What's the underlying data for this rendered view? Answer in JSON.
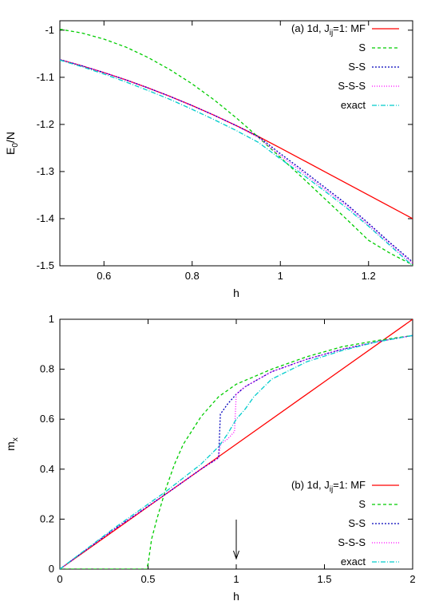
{
  "chart_data": [
    {
      "type": "line",
      "panel_label": "(a) 1d, J",
      "panel_label_sub": "ij",
      "panel_label_tail": "=1: MF",
      "xlabel": "h",
      "ylabel_main": "E",
      "ylabel_sub": "0",
      "ylabel_tail": "/N",
      "xlim": [
        0.5,
        1.3
      ],
      "ylim": [
        -1.5,
        -0.98
      ],
      "xticks": [
        0.6,
        0.8,
        1,
        1.2
      ],
      "xtick_labels": [
        "0.6",
        "0.8",
        "1",
        "1.2"
      ],
      "yticks": [
        -1.5,
        -1.4,
        -1.3,
        -1.2,
        -1.1,
        -1
      ],
      "ytick_labels": [
        "-1.5",
        "-1.4",
        "-1.3",
        "-1.2",
        "-1.1",
        "-1"
      ],
      "grid": false,
      "legend_position": "top-right",
      "series": [
        {
          "name": "MF",
          "color": "#ff0000",
          "dash": "",
          "x": [
            0.5,
            0.55,
            0.6,
            0.65,
            0.7,
            0.75,
            0.8,
            0.85,
            0.9,
            0.95,
            1.0,
            1.05,
            1.1,
            1.15,
            1.2,
            1.25,
            1.3
          ],
          "y": [
            -1.0625,
            -1.0756,
            -1.09,
            -1.1056,
            -1.1225,
            -1.1406,
            -1.16,
            -1.1806,
            -1.2025,
            -1.2256,
            -1.25,
            -1.275,
            -1.3,
            -1.325,
            -1.35,
            -1.375,
            -1.4
          ]
        },
        {
          "name": "S",
          "color": "#00cc00",
          "dash": "4,3",
          "x": [
            0.5,
            0.55,
            0.6,
            0.65,
            0.7,
            0.75,
            0.8,
            0.85,
            0.9,
            0.95,
            1.0,
            1.05,
            1.1,
            1.15,
            1.2,
            1.25,
            1.3
          ],
          "y": [
            -0.998,
            -1.006,
            -1.019,
            -1.036,
            -1.058,
            -1.084,
            -1.114,
            -1.148,
            -1.186,
            -1.227,
            -1.27,
            -1.313,
            -1.357,
            -1.401,
            -1.446,
            -1.474,
            -1.498
          ]
        },
        {
          "name": "S-S",
          "color": "#0000bb",
          "dash": "2,2",
          "x": [
            0.5,
            0.55,
            0.6,
            0.65,
            0.7,
            0.75,
            0.8,
            0.85,
            0.9,
            0.95,
            1.0,
            1.05,
            1.1,
            1.15,
            1.2,
            1.25,
            1.3
          ],
          "y": [
            -1.0625,
            -1.0756,
            -1.09,
            -1.1056,
            -1.1225,
            -1.1406,
            -1.16,
            -1.1806,
            -1.2025,
            -1.2256,
            -1.262,
            -1.297,
            -1.333,
            -1.369,
            -1.41,
            -1.452,
            -1.492
          ]
        },
        {
          "name": "S-S-S",
          "color": "#ff00ff",
          "dash": "1,2",
          "x": [
            0.5,
            0.55,
            0.6,
            0.65,
            0.7,
            0.75,
            0.8,
            0.85,
            0.9,
            0.95,
            1.0,
            1.05,
            1.1,
            1.15,
            1.2,
            1.25,
            1.3
          ],
          "y": [
            -1.0625,
            -1.0756,
            -1.09,
            -1.1056,
            -1.1225,
            -1.1406,
            -1.16,
            -1.1806,
            -1.2025,
            -1.228,
            -1.266,
            -1.301,
            -1.337,
            -1.372,
            -1.413,
            -1.455,
            -1.495
          ]
        },
        {
          "name": "exact",
          "color": "#00cccc",
          "dash": "6,2,1,2",
          "x": [
            0.5,
            0.55,
            0.6,
            0.65,
            0.7,
            0.75,
            0.8,
            0.85,
            0.9,
            0.95,
            1.0,
            1.05,
            1.1,
            1.15,
            1.2,
            1.25,
            1.3
          ],
          "y": [
            -1.0635,
            -1.0775,
            -1.093,
            -1.11,
            -1.128,
            -1.147,
            -1.168,
            -1.19,
            -1.213,
            -1.238,
            -1.273,
            -1.306,
            -1.341,
            -1.377,
            -1.416,
            -1.458,
            -1.5
          ]
        }
      ]
    },
    {
      "type": "line",
      "panel_label": "(b) 1d, J",
      "panel_label_sub": "ij",
      "panel_label_tail": "=1: MF",
      "xlabel": "h",
      "ylabel_main": "m",
      "ylabel_sub": "x",
      "ylabel_tail": "",
      "xlim": [
        0,
        2
      ],
      "ylim": [
        0,
        1
      ],
      "xticks": [
        0,
        0.5,
        1,
        1.5,
        2
      ],
      "xtick_labels": [
        "0",
        "0.5",
        "1",
        "1.5",
        "2"
      ],
      "yticks": [
        0,
        0.2,
        0.4,
        0.6,
        0.8,
        1
      ],
      "ytick_labels": [
        "0",
        "0.2",
        "0.4",
        "0.6",
        "0.8",
        "1"
      ],
      "grid": false,
      "legend_position": "bottom-right",
      "arrow_at_x": 1,
      "series": [
        {
          "name": "MF",
          "color": "#ff0000",
          "dash": "",
          "x": [
            0,
            0.5,
            1.0,
            1.5,
            2.0
          ],
          "y": [
            0,
            0.25,
            0.5,
            0.75,
            1.0
          ]
        },
        {
          "name": "S",
          "color": "#00cc00",
          "dash": "4,3",
          "x": [
            0,
            0.49,
            0.5,
            0.52,
            0.55,
            0.6,
            0.65,
            0.7,
            0.8,
            0.9,
            1.0,
            1.2,
            1.4,
            1.6,
            1.8,
            2.0
          ],
          "y": [
            0,
            0,
            0.02,
            0.12,
            0.2,
            0.32,
            0.42,
            0.5,
            0.61,
            0.69,
            0.74,
            0.8,
            0.85,
            0.89,
            0.915,
            0.935
          ]
        },
        {
          "name": "S-S",
          "color": "#0000bb",
          "dash": "2,2",
          "x": [
            0,
            0.3,
            0.6,
            0.8,
            0.9,
            0.91,
            0.95,
            1.0,
            1.05,
            1.1,
            1.2,
            1.4,
            1.6,
            1.8,
            2.0
          ],
          "y": [
            0,
            0.155,
            0.3,
            0.4,
            0.445,
            0.62,
            0.66,
            0.7,
            0.73,
            0.75,
            0.79,
            0.84,
            0.88,
            0.91,
            0.935
          ]
        },
        {
          "name": "S-S-S",
          "color": "#ff00ff",
          "dash": "1,2",
          "x": [
            0,
            0.3,
            0.6,
            0.8,
            0.9,
            0.91,
            0.95,
            0.99,
            1.0,
            1.05,
            1.1,
            1.2,
            1.4,
            1.6,
            1.8,
            2.0
          ],
          "y": [
            0,
            0.155,
            0.3,
            0.4,
            0.445,
            0.5,
            0.52,
            0.55,
            0.7,
            0.73,
            0.75,
            0.79,
            0.84,
            0.88,
            0.91,
            0.935
          ]
        },
        {
          "name": "exact",
          "color": "#00cccc",
          "dash": "6,2,1,2",
          "x": [
            0,
            0.3,
            0.6,
            0.8,
            0.9,
            0.95,
            1.0,
            1.05,
            1.1,
            1.2,
            1.4,
            1.6,
            1.8,
            2.0
          ],
          "y": [
            0,
            0.16,
            0.31,
            0.42,
            0.49,
            0.54,
            0.6,
            0.64,
            0.69,
            0.76,
            0.83,
            0.875,
            0.91,
            0.935
          ]
        }
      ]
    }
  ]
}
